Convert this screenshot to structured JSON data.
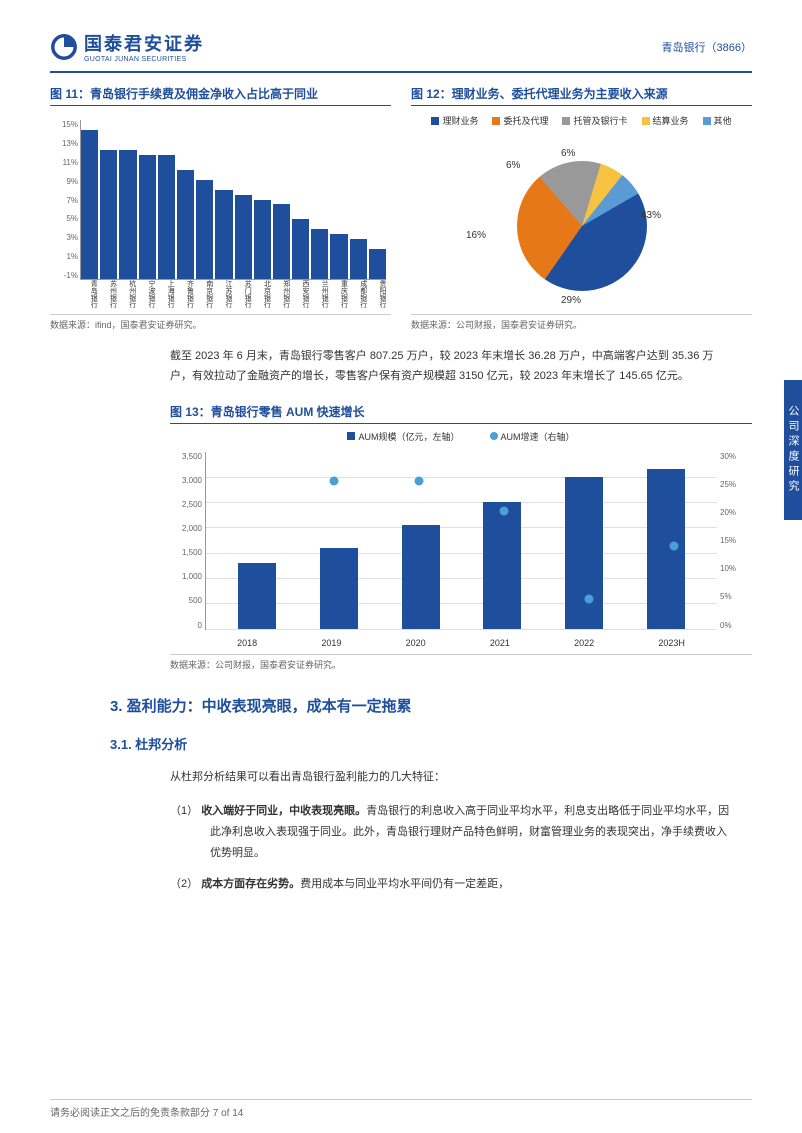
{
  "header": {
    "logo_cn": "国泰君安证券",
    "logo_en": "GUOTAI JUNAN SECURITIES",
    "stock": "青岛银行（3866）"
  },
  "chart11": {
    "title": "图 11：青岛银行手续费及佣金净收入占比高于同业",
    "type": "bar",
    "ylim": [
      -1,
      15
    ],
    "yticks": [
      "15%",
      "13%",
      "11%",
      "9%",
      "7%",
      "5%",
      "3%",
      "1%",
      "-1%"
    ],
    "categories": [
      "青岛银行",
      "苏州银行",
      "杭州银行",
      "宁波银行",
      "上海银行",
      "齐鲁银行",
      "南京银行",
      "江苏银行",
      "苏门银行",
      "北京银行",
      "郑州银行",
      "西安银行",
      "兰州银行",
      "重庆银行",
      "成都银行",
      "贵阳银行"
    ],
    "values": [
      14,
      12,
      12,
      11.5,
      11.5,
      10,
      9,
      8,
      7.5,
      7,
      6.5,
      5,
      4,
      3.5,
      3,
      2
    ],
    "bar_color": "#1f4e9c",
    "source": "数据来源：ifind，国泰君安证券研究。"
  },
  "chart12": {
    "title": "图 12：理财业务、委托代理业务为主要收入来源",
    "type": "pie",
    "legend": [
      {
        "label": "理财业务",
        "color": "#1f4e9c"
      },
      {
        "label": "委托及代理",
        "color": "#e67817"
      },
      {
        "label": "托管及银行卡",
        "color": "#999999"
      },
      {
        "label": "结算业务",
        "color": "#f5c242"
      },
      {
        "label": "其他",
        "color": "#5b9bd5"
      }
    ],
    "slices": [
      {
        "label": "43%",
        "value": 43,
        "color": "#1f4e9c"
      },
      {
        "label": "29%",
        "value": 29,
        "color": "#e67817"
      },
      {
        "label": "16%",
        "value": 16,
        "color": "#999999"
      },
      {
        "label": "6%",
        "value": 6,
        "color": "#f5c242"
      },
      {
        "label": "6%",
        "value": 6,
        "color": "#5b9bd5"
      }
    ],
    "source": "数据来源：公司财报，国泰君安证券研究。"
  },
  "para1": "截至 2023 年 6 月末，青岛银行零售客户 807.25 万户，较 2023 年末增长 36.28 万户，中高端客户达到 35.36 万户，有效拉动了金融资产的增长，零售客户保有资产规模超 3150 亿元，较 2023 年末增长了 145.65 亿元。",
  "chart13": {
    "title": "图 13：青岛银行零售 AUM 快速增长",
    "legend_bar": "AUM规模（亿元，左轴）",
    "legend_dot": "AUM增速（右轴）",
    "categories": [
      "2018",
      "2019",
      "2020",
      "2021",
      "2022",
      "2023H"
    ],
    "bar_values": [
      1300,
      1600,
      2050,
      2500,
      3000,
      3150
    ],
    "bar_max": 3500,
    "dot_values": [
      null,
      25,
      25,
      20,
      5,
      14
    ],
    "dot_max": 30,
    "yl_ticks": [
      "3,500",
      "3,000",
      "2,500",
      "2,000",
      "1,500",
      "1,000",
      "500",
      "0"
    ],
    "yr_ticks": [
      "30%",
      "25%",
      "20%",
      "15%",
      "10%",
      "5%",
      "0%"
    ],
    "bar_color": "#1f4e9c",
    "dot_color": "#4a9fd8",
    "source": "数据来源：公司财报，国泰君安证券研究。"
  },
  "section3": {
    "heading": "3. 盈利能力：中收表现亮眼，成本有一定拖累",
    "sub1": "3.1. 杜邦分析",
    "intro": "从杜邦分析结果可以看出青岛银行盈利能力的几大特征：",
    "item1_num": "（1）",
    "item1_bold": "收入端好于同业，中收表现亮眼。",
    "item1_rest": "青岛银行的利息收入高于同业平均水平，利息支出略低于同业平均水平，因此净利息收入表现强于同业。此外，青岛银行理财产品特色鲜明，财富管理业务的表现突出，净手续费收入优势明显。",
    "item2_num": "（2）",
    "item2_bold": "成本方面存在劣势。",
    "item2_rest": "费用成本与同业平均水平间仍有一定差距，"
  },
  "footer": "请务必阅读正文之后的免责条款部分 7 of 14",
  "side_tab": "公司深度研究"
}
